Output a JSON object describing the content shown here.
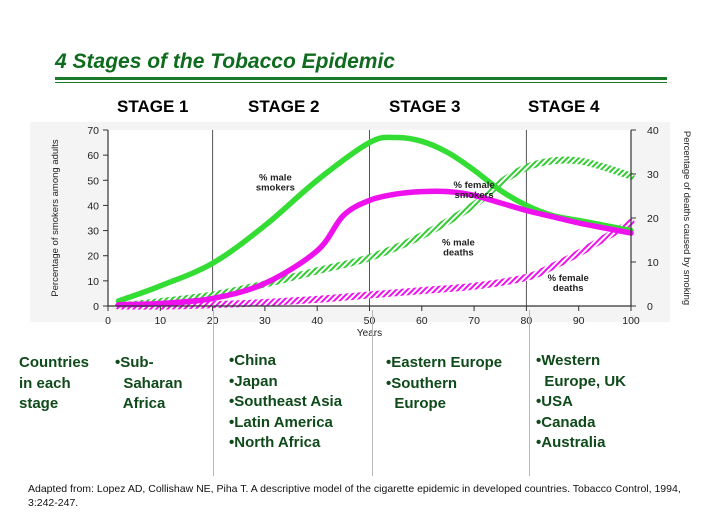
{
  "slide": {
    "title": "4 Stages of the Tobacco Epidemic",
    "stages": [
      "STAGE 1",
      "STAGE 2",
      "STAGE 3",
      "STAGE 4"
    ],
    "countries_label": [
      "Countries",
      "in each",
      "stage"
    ],
    "stage_countries": [
      [
        "•Sub-",
        "  Saharan",
        "  Africa"
      ],
      [
        "•China",
        "•Japan",
        "•Southeast Asia",
        "•Latin America",
        "•North Africa"
      ],
      [
        "•Eastern Europe",
        "•Southern",
        "  Europe"
      ],
      [
        "•Western",
        "  Europe, UK",
        "•USA",
        "•Canada",
        "•Australia"
      ]
    ],
    "citation": "Adapted from:  Lopez AD, Collishaw NE, Piha T.  A descriptive model of the cigarette epidemic in developed countries.  Tobacco Control, 1994, 3:242-247."
  },
  "chart_data": {
    "type": "line",
    "xlabel": "Years",
    "ylabel": "Percentage of smokers among adults",
    "y2label": "Percentage of deaths caused by smoking",
    "xlim": [
      0,
      100
    ],
    "ylim": [
      0,
      70
    ],
    "y2lim": [
      0,
      40
    ],
    "xticks": [
      0,
      10,
      20,
      30,
      40,
      50,
      60,
      70,
      80,
      90,
      100
    ],
    "yticks": [
      0,
      10,
      20,
      30,
      40,
      50,
      60,
      70
    ],
    "y2ticks": [
      0,
      10,
      20,
      30,
      40
    ],
    "stage_boundaries": [
      20,
      50,
      80
    ],
    "colors": {
      "male": "#33dd33",
      "female": "#ee11ee"
    },
    "series": [
      {
        "name": "% male smokers",
        "axis": "left",
        "style": "solid",
        "color": "male",
        "x": [
          2,
          10,
          20,
          30,
          40,
          50,
          55,
          60,
          65,
          70,
          75,
          80,
          85,
          90,
          95,
          100
        ],
        "y": [
          2,
          8,
          17,
          32,
          50,
          65,
          67,
          65.5,
          61,
          54,
          46,
          40,
          36,
          34,
          32,
          30
        ]
      },
      {
        "name": "% female smokers",
        "axis": "left",
        "style": "solid",
        "color": "female",
        "x": [
          2,
          10,
          20,
          30,
          40,
          45,
          50,
          55,
          60,
          65,
          70,
          75,
          80,
          85,
          90,
          95,
          100
        ],
        "y": [
          0.5,
          1,
          3,
          9,
          22,
          36,
          42,
          44.5,
          45.5,
          45.5,
          44,
          41,
          38,
          35.5,
          33,
          31,
          29
        ]
      },
      {
        "name": "% male deaths",
        "axis": "right",
        "style": "hatched",
        "color": "male",
        "x": [
          2,
          10,
          20,
          30,
          40,
          50,
          60,
          70,
          75,
          80,
          85,
          90,
          95,
          100
        ],
        "y": [
          0,
          1,
          2.5,
          5,
          8,
          11,
          16,
          23,
          28,
          31.5,
          33,
          33,
          31.5,
          29.5
        ]
      },
      {
        "name": "% female deaths",
        "axis": "right",
        "style": "hatched",
        "color": "female",
        "x": [
          2,
          10,
          20,
          30,
          40,
          50,
          60,
          70,
          80,
          85,
          90,
          95,
          100
        ],
        "y": [
          0,
          0,
          0.3,
          0.8,
          1.5,
          2.5,
          3.5,
          4.5,
          6.5,
          9,
          12,
          15.5,
          19
        ]
      }
    ],
    "annotations": [
      {
        "text": [
          "% male",
          "smokers"
        ],
        "x": 32,
        "y": 50
      },
      {
        "text": [
          "% female",
          "smokers"
        ],
        "x": 70,
        "y": 47
      },
      {
        "text": [
          "% male",
          "deaths"
        ],
        "x": 67,
        "y": 24
      },
      {
        "text": [
          "% female",
          "deaths"
        ],
        "x": 88,
        "y": 10
      }
    ]
  }
}
